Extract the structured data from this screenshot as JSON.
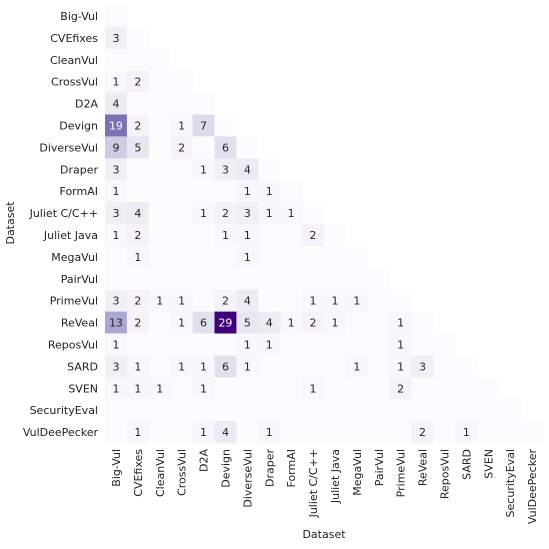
{
  "chart_data": {
    "type": "heatmap",
    "title": "",
    "xlabel": "Dataset",
    "ylabel": "Dataset",
    "categories": [
      "Big-Vul",
      "CVEfixes",
      "CleanVul",
      "CrossVul",
      "D2A",
      "Devign",
      "DiverseVul",
      "Draper",
      "FormAI",
      "Juliet C/C++",
      "Juliet Java",
      "MegaVul",
      "PairVul",
      "PrimeVul",
      "ReVeal",
      "ReposVul",
      "SARD",
      "SVEN",
      "SecurityEval",
      "VulDeePecker"
    ],
    "matrix": [
      [
        0,
        0,
        0,
        0,
        0,
        0,
        0,
        0,
        0,
        0,
        0,
        0,
        0,
        0,
        0,
        0,
        0,
        0,
        0,
        0
      ],
      [
        3,
        0,
        0,
        0,
        0,
        0,
        0,
        0,
        0,
        0,
        0,
        0,
        0,
        0,
        0,
        0,
        0,
        0,
        0,
        0
      ],
      [
        0,
        0,
        0,
        0,
        0,
        0,
        0,
        0,
        0,
        0,
        0,
        0,
        0,
        0,
        0,
        0,
        0,
        0,
        0,
        0
      ],
      [
        1,
        2,
        0,
        0,
        0,
        0,
        0,
        0,
        0,
        0,
        0,
        0,
        0,
        0,
        0,
        0,
        0,
        0,
        0,
        0
      ],
      [
        4,
        0,
        0,
        0,
        0,
        0,
        0,
        0,
        0,
        0,
        0,
        0,
        0,
        0,
        0,
        0,
        0,
        0,
        0,
        0
      ],
      [
        19,
        2,
        0,
        1,
        7,
        0,
        0,
        0,
        0,
        0,
        0,
        0,
        0,
        0,
        0,
        0,
        0,
        0,
        0,
        0
      ],
      [
        9,
        5,
        0,
        2,
        0,
        6,
        0,
        0,
        0,
        0,
        0,
        0,
        0,
        0,
        0,
        0,
        0,
        0,
        0,
        0
      ],
      [
        3,
        0,
        0,
        0,
        1,
        3,
        4,
        0,
        0,
        0,
        0,
        0,
        0,
        0,
        0,
        0,
        0,
        0,
        0,
        0
      ],
      [
        1,
        0,
        0,
        0,
        0,
        0,
        1,
        1,
        0,
        0,
        0,
        0,
        0,
        0,
        0,
        0,
        0,
        0,
        0,
        0
      ],
      [
        3,
        4,
        0,
        0,
        1,
        2,
        3,
        1,
        1,
        0,
        0,
        0,
        0,
        0,
        0,
        0,
        0,
        0,
        0,
        0
      ],
      [
        1,
        2,
        0,
        0,
        0,
        1,
        1,
        0,
        0,
        2,
        0,
        0,
        0,
        0,
        0,
        0,
        0,
        0,
        0,
        0
      ],
      [
        0,
        1,
        0,
        0,
        0,
        0,
        1,
        0,
        0,
        0,
        0,
        0,
        0,
        0,
        0,
        0,
        0,
        0,
        0,
        0
      ],
      [
        0,
        0,
        0,
        0,
        0,
        0,
        0,
        0,
        0,
        0,
        0,
        0,
        0,
        0,
        0,
        0,
        0,
        0,
        0,
        0
      ],
      [
        3,
        2,
        1,
        1,
        0,
        2,
        4,
        0,
        0,
        1,
        1,
        1,
        0,
        0,
        0,
        0,
        0,
        0,
        0,
        0
      ],
      [
        13,
        2,
        0,
        1,
        6,
        29,
        5,
        4,
        1,
        2,
        1,
        0,
        0,
        1,
        0,
        0,
        0,
        0,
        0,
        0
      ],
      [
        1,
        0,
        0,
        0,
        0,
        0,
        1,
        1,
        0,
        0,
        0,
        0,
        0,
        1,
        0,
        0,
        0,
        0,
        0,
        0
      ],
      [
        3,
        1,
        0,
        1,
        1,
        6,
        1,
        0,
        0,
        0,
        0,
        1,
        0,
        1,
        3,
        0,
        0,
        0,
        0,
        0
      ],
      [
        1,
        1,
        1,
        0,
        1,
        0,
        0,
        0,
        0,
        1,
        0,
        0,
        0,
        2,
        0,
        0,
        0,
        0,
        0,
        0
      ],
      [
        0,
        0,
        0,
        0,
        0,
        0,
        0,
        0,
        0,
        0,
        0,
        0,
        0,
        0,
        0,
        0,
        0,
        0,
        0,
        0
      ],
      [
        0,
        1,
        0,
        0,
        1,
        4,
        0,
        1,
        0,
        0,
        0,
        0,
        0,
        0,
        2,
        0,
        1,
        0,
        0,
        0
      ]
    ],
    "vmin": 0,
    "vmax": 29,
    "colormap": "Purples",
    "mask": "lower-triangle",
    "show_zero_labels": false,
    "grid": false,
    "legend": "none"
  }
}
